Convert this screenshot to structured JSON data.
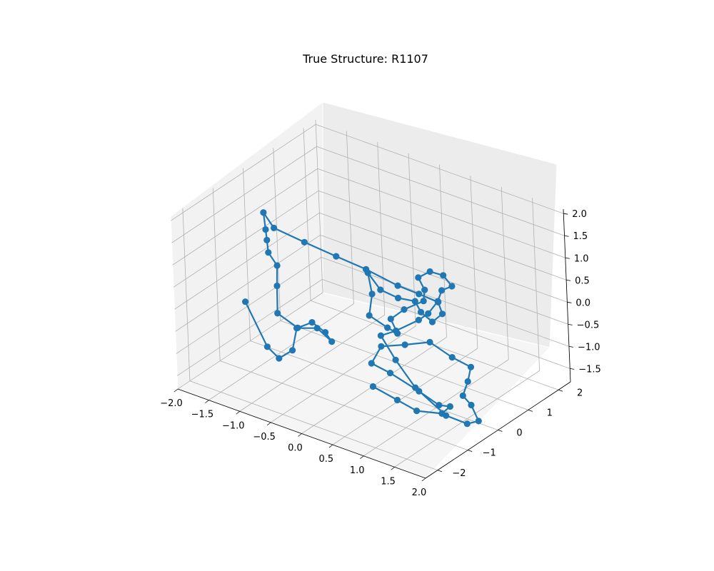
{
  "chart_data": {
    "type": "scatter",
    "title": "True Structure: R1107",
    "x_ticks": [
      "−2.0",
      "−1.5",
      "−1.0",
      "−0.5",
      "0.0",
      "0.5",
      "1.0",
      "1.5",
      "2.0"
    ],
    "y_ticks": [
      "−2",
      "−1",
      "0",
      "1",
      "2"
    ],
    "z_ticks": [
      "−1.5",
      "−1.0",
      "−0.5",
      "0.0",
      "0.5",
      "1.0",
      "1.5",
      "2.0"
    ],
    "xlim": [
      -2,
      2
    ],
    "ylim": [
      -2.4,
      2.4
    ],
    "zlim": [
      -1.8,
      2.1
    ],
    "grid": true,
    "series": [
      {
        "color": "#1f77b4",
        "marker": "circle",
        "connected": true,
        "points": [
          [
            -1.52,
            -1.05,
            -0.2
          ],
          [
            -1.14,
            -1.15,
            -0.98
          ],
          [
            -0.95,
            -1.16,
            -1.14
          ],
          [
            -0.72,
            -1.17,
            -0.84
          ],
          [
            -0.66,
            -1.12,
            -0.33
          ],
          [
            -0.31,
            -1.15,
            -0.14
          ],
          [
            -0.08,
            -1.15,
            -0.33
          ],
          [
            -0.18,
            -1.15,
            -0.17
          ],
          [
            -0.39,
            -1.15,
            -0.05
          ],
          [
            -0.64,
            -1.13,
            -0.31
          ],
          [
            -0.98,
            -1.09,
            -0.17
          ],
          [
            -0.98,
            -1.07,
            0.44
          ],
          [
            -0.97,
            -1.06,
            0.9
          ],
          [
            -1.11,
            -1.05,
            1.12
          ],
          [
            -1.14,
            -1.02,
            1.37
          ],
          [
            -1.17,
            -0.99,
            1.58
          ],
          [
            -1.21,
            -0.96,
            1.93
          ],
          [
            -1.15,
            -0.76,
            1.52
          ],
          [
            -0.7,
            -0.68,
            1.39
          ],
          [
            -0.21,
            -0.64,
            1.3
          ],
          [
            0.25,
            -0.6,
            1.22
          ],
          [
            0.74,
            -0.56,
            1.08
          ],
          [
            1.05,
            -0.5,
            1.02
          ],
          [
            1.33,
            -0.44,
            0.95
          ],
          [
            1.38,
            -0.42,
            0.7
          ],
          [
            1.2,
            -0.4,
            0.42
          ],
          [
            1.02,
            -0.4,
            0.55
          ],
          [
            0.88,
            -0.3,
            0.68
          ],
          [
            0.58,
            -0.25,
            0.58
          ],
          [
            0.28,
            -0.22,
            0.6
          ],
          [
            0.06,
            -0.17,
            0.85
          ],
          [
            0.13,
            -0.2,
            0.42
          ],
          [
            0.08,
            -0.22,
            -0.08
          ],
          [
            0.37,
            -0.22,
            -0.21
          ],
          [
            0.53,
            -0.22,
            -0.26
          ],
          [
            0.44,
            -0.24,
            0.03
          ],
          [
            0.68,
            -0.27,
            0.38
          ],
          [
            1.03,
            -0.32,
            0.77
          ],
          [
            1.08,
            -0.37,
            1.07
          ],
          [
            1.0,
            -0.4,
            1.32
          ],
          [
            1.2,
            -0.41,
            1.56
          ],
          [
            1.42,
            -0.42,
            1.59
          ],
          [
            1.56,
            -0.43,
            1.42
          ],
          [
            1.39,
            -0.43,
            1.24
          ],
          [
            1.32,
            -0.43,
            0.96
          ],
          [
            1.24,
            -0.6,
            0.72
          ],
          [
            1.1,
            -0.64,
            0.52
          ],
          [
            0.73,
            -0.66,
            0.1
          ],
          [
            0.49,
            -0.68,
            -0.12
          ],
          [
            0.72,
            -0.69,
            -0.55
          ],
          [
            1.04,
            -0.72,
            -1.0
          ],
          [
            1.55,
            -0.77,
            -1.35
          ],
          [
            1.9,
            -0.79,
            -1.35
          ],
          [
            2.1,
            -0.81,
            -1.18
          ],
          [
            2.0,
            -0.83,
            -0.86
          ],
          [
            1.88,
            -0.85,
            -0.7
          ],
          [
            1.98,
            -0.87,
            -0.32
          ],
          [
            2.05,
            -0.89,
            0.05
          ],
          [
            1.75,
            -0.89,
            0.12
          ],
          [
            1.4,
            -0.9,
            0.29
          ],
          [
            1.0,
            -0.92,
            0.04
          ],
          [
            0.62,
            -0.94,
            -0.18
          ],
          [
            0.47,
            -0.98,
            -0.62
          ],
          [
            0.79,
            -1.02,
            -0.66
          ],
          [
            1.27,
            -1.06,
            -0.81
          ],
          [
            1.6,
            -1.08,
            -0.95
          ],
          [
            1.78,
            -1.08,
            -0.89
          ],
          [
            1.64,
            -1.08,
            -1.12
          ],
          [
            1.24,
            -1.1,
            -1.25
          ],
          [
            0.94,
            -1.12,
            -1.15
          ],
          [
            0.55,
            -1.12,
            -1.04
          ]
        ]
      }
    ]
  }
}
